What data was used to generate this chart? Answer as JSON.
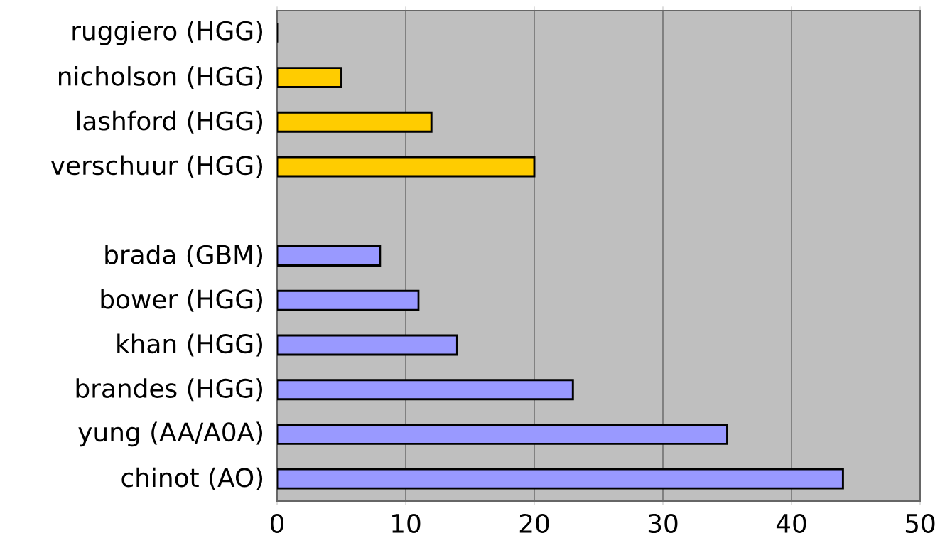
{
  "chart_data": {
    "type": "bar",
    "orientation": "horizontal",
    "categories": [
      "ruggiero (HGG)",
      "nicholson (HGG)",
      "lashford (HGG)",
      "verschuur (HGG)",
      null,
      "brada (GBM)",
      "bower (HGG)",
      "khan (HGG)",
      "brandes (HGG)",
      "yung (AA/A0A)",
      "chinot (AO)"
    ],
    "values": [
      0,
      5,
      12,
      20,
      null,
      8,
      11,
      14,
      23,
      35,
      44
    ],
    "colors": [
      "#ffcc00",
      "#ffcc00",
      "#ffcc00",
      "#ffcc00",
      null,
      "#9999ff",
      "#9999ff",
      "#9999ff",
      "#9999ff",
      "#9999ff",
      "#9999ff"
    ],
    "xlim": [
      0,
      50
    ],
    "xticks": [
      0,
      10,
      20,
      30,
      40,
      50
    ],
    "grid": "x"
  }
}
